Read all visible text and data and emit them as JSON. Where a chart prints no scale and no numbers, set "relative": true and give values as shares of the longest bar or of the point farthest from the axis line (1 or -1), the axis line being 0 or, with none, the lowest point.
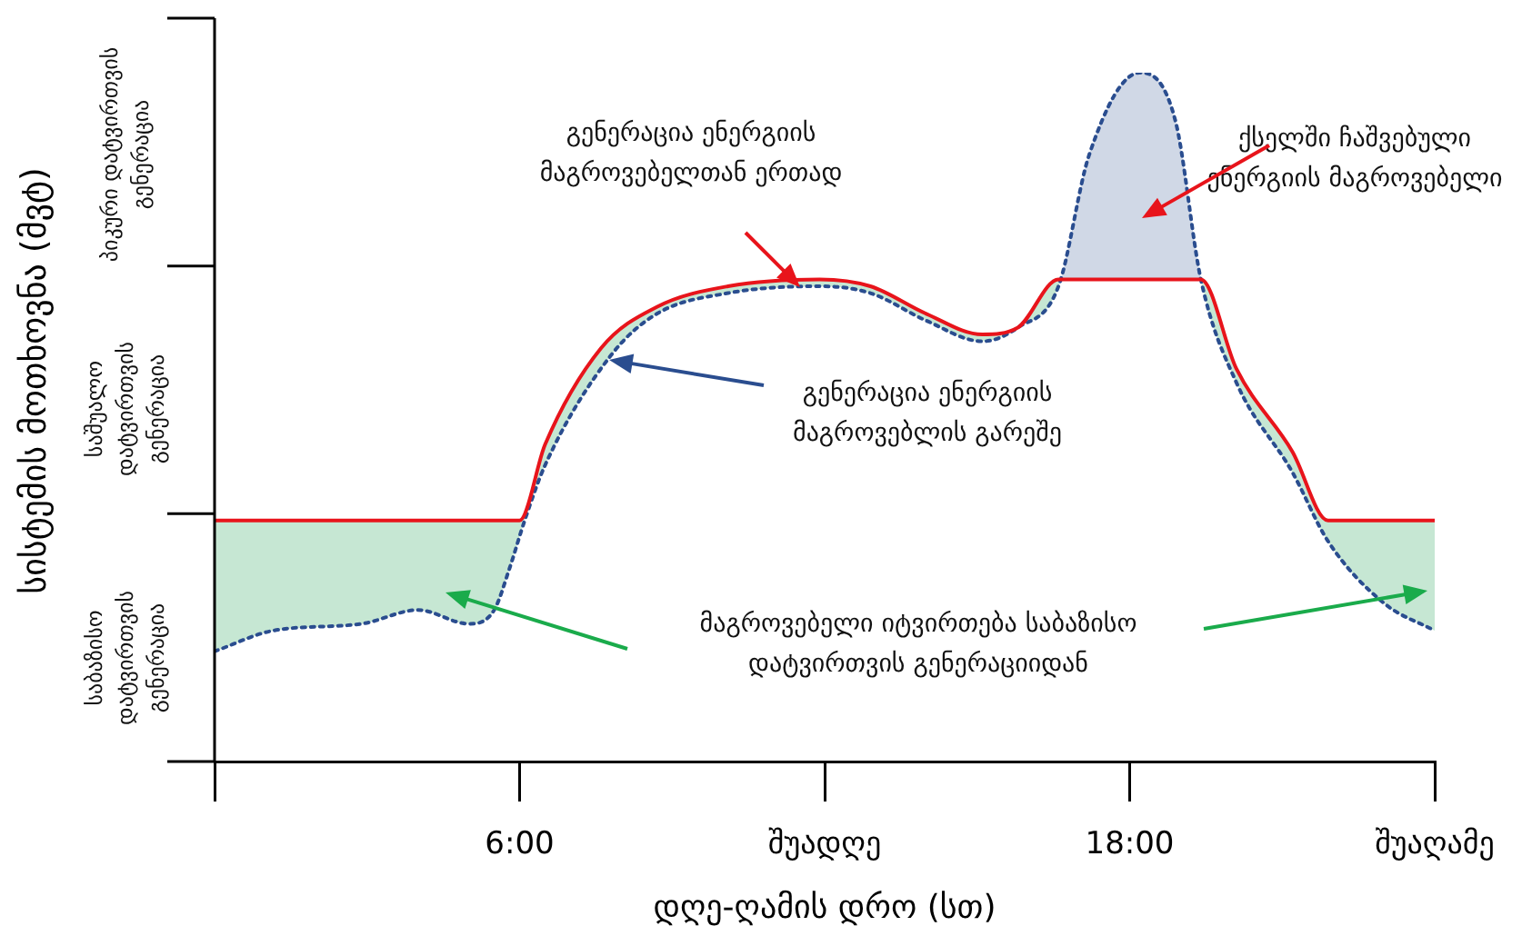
{
  "chart_data": {
    "type": "line",
    "relative": true,
    "xlabel": "დღე-ღამის დრო (სთ)",
    "ylabel": "სისტემის მოთხოვნა (მვტ)",
    "xlim": [
      0,
      24
    ],
    "xticks": [
      {
        "value": 0,
        "label": null
      },
      {
        "value": 6,
        "label": "6:00"
      },
      {
        "value": 12,
        "label": "შუადღე"
      },
      {
        "value": 18,
        "label": "18:00"
      },
      {
        "value": 24,
        "label": "შუაღამე"
      }
    ],
    "series": [
      {
        "color": "#e8141b",
        "line_style": "solid",
        "x": [
          0,
          6,
          6.5,
          7.6,
          8.7,
          10.1,
          11.9,
          12.9,
          14,
          15.1,
          15.8,
          16.6,
          19.4,
          20.1,
          21.2,
          21.9,
          24
        ],
        "values": [
          0.35,
          0.35,
          0.46,
          0.6,
          0.66,
          0.69,
          0.7,
          0.69,
          0.65,
          0.62,
          0.63,
          0.7,
          0.7,
          0.57,
          0.45,
          0.35,
          0.35
        ]
      },
      {
        "color": "#2a4d8f",
        "line_style": "dotted",
        "x": [
          0,
          1.15,
          2.9,
          4,
          5,
          5.5,
          5.8,
          6.1,
          6.5,
          7.8,
          8.7,
          10.1,
          11.9,
          12.9,
          14,
          15.1,
          15.8,
          16.6,
          17.2,
          18.2,
          18.9,
          19.4,
          20.1,
          21.2,
          21.9,
          23,
          24
        ],
        "values": [
          0.16,
          0.19,
          0.2,
          0.22,
          0.2,
          0.22,
          0.28,
          0.35,
          0.43,
          0.59,
          0.65,
          0.68,
          0.69,
          0.68,
          0.64,
          0.61,
          0.63,
          0.69,
          0.88,
          1.0,
          0.93,
          0.7,
          0.55,
          0.42,
          0.32,
          0.23,
          0.19
        ]
      }
    ],
    "annotations": [
      "გენერაცია ენერგიის მაგროვებელთან ერთად",
      "გენერაცია ენერგიის მაგროვებლის გარეშე",
      "ქსელში ჩაშვებული ენერგიის მაგროვებელი",
      "მაგროვებელი იტვირთება საბაზისო დატვირთვის გენერაციიდან",
      "საბაზისო დატვირთვის გენერაცია",
      "საშუალო დატვირთვის გენერაცია",
      "პიკური დატვირთვის გენერაცია"
    ],
    "legend": false,
    "grid": false,
    "marker": "none"
  }
}
